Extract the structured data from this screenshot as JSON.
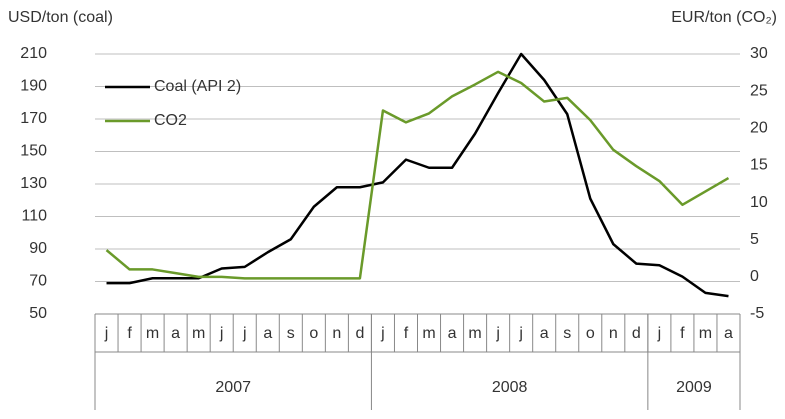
{
  "chart_data": {
    "type": "line",
    "y_axis_label": "USD/ton (coal)",
    "y2_axis_label": "EUR/ton (CO₂)",
    "category_groups": [
      {
        "label": "2007",
        "categories": [
          "j",
          "f",
          "m",
          "a",
          "m",
          "j",
          "j",
          "a",
          "s",
          "o",
          "n",
          "d"
        ]
      },
      {
        "label": "2008",
        "categories": [
          "j",
          "f",
          "m",
          "a",
          "m",
          "j",
          "j",
          "a",
          "s",
          "o",
          "n",
          "d"
        ]
      },
      {
        "label": "2009",
        "categories": [
          "j",
          "f",
          "m",
          "a"
        ]
      }
    ],
    "series": [
      {
        "name": "Coal (API 2)",
        "color": "#000000",
        "axis": "y",
        "values": [
          69,
          69,
          72,
          72,
          72,
          78,
          79,
          88,
          96,
          116,
          128,
          128,
          131,
          145,
          140,
          140,
          161,
          186,
          210,
          194,
          173,
          121,
          93,
          81,
          80,
          73,
          63,
          61
        ]
      },
      {
        "name": "CO2",
        "color": "#6a9a2a",
        "axis": "y2",
        "values": [
          3.6,
          1,
          1,
          0.5,
          0,
          0,
          -0.2,
          -0.2,
          -0.2,
          -0.2,
          -0.2,
          -0.2,
          22.4,
          20.8,
          22,
          24.3,
          25.9,
          27.6,
          26.1,
          23.6,
          24.1,
          21.1,
          17.1,
          14.9,
          12.9,
          9.7,
          11.5,
          13.3
        ]
      }
    ],
    "ylim": [
      50,
      210
    ],
    "yticks": [
      50,
      70,
      90,
      110,
      130,
      150,
      170,
      190,
      210
    ],
    "y2lim": [
      -5,
      30
    ],
    "y2ticks": [
      -5,
      0,
      5,
      10,
      15,
      20,
      25,
      30
    ],
    "grid": true,
    "legend": "top-left"
  }
}
